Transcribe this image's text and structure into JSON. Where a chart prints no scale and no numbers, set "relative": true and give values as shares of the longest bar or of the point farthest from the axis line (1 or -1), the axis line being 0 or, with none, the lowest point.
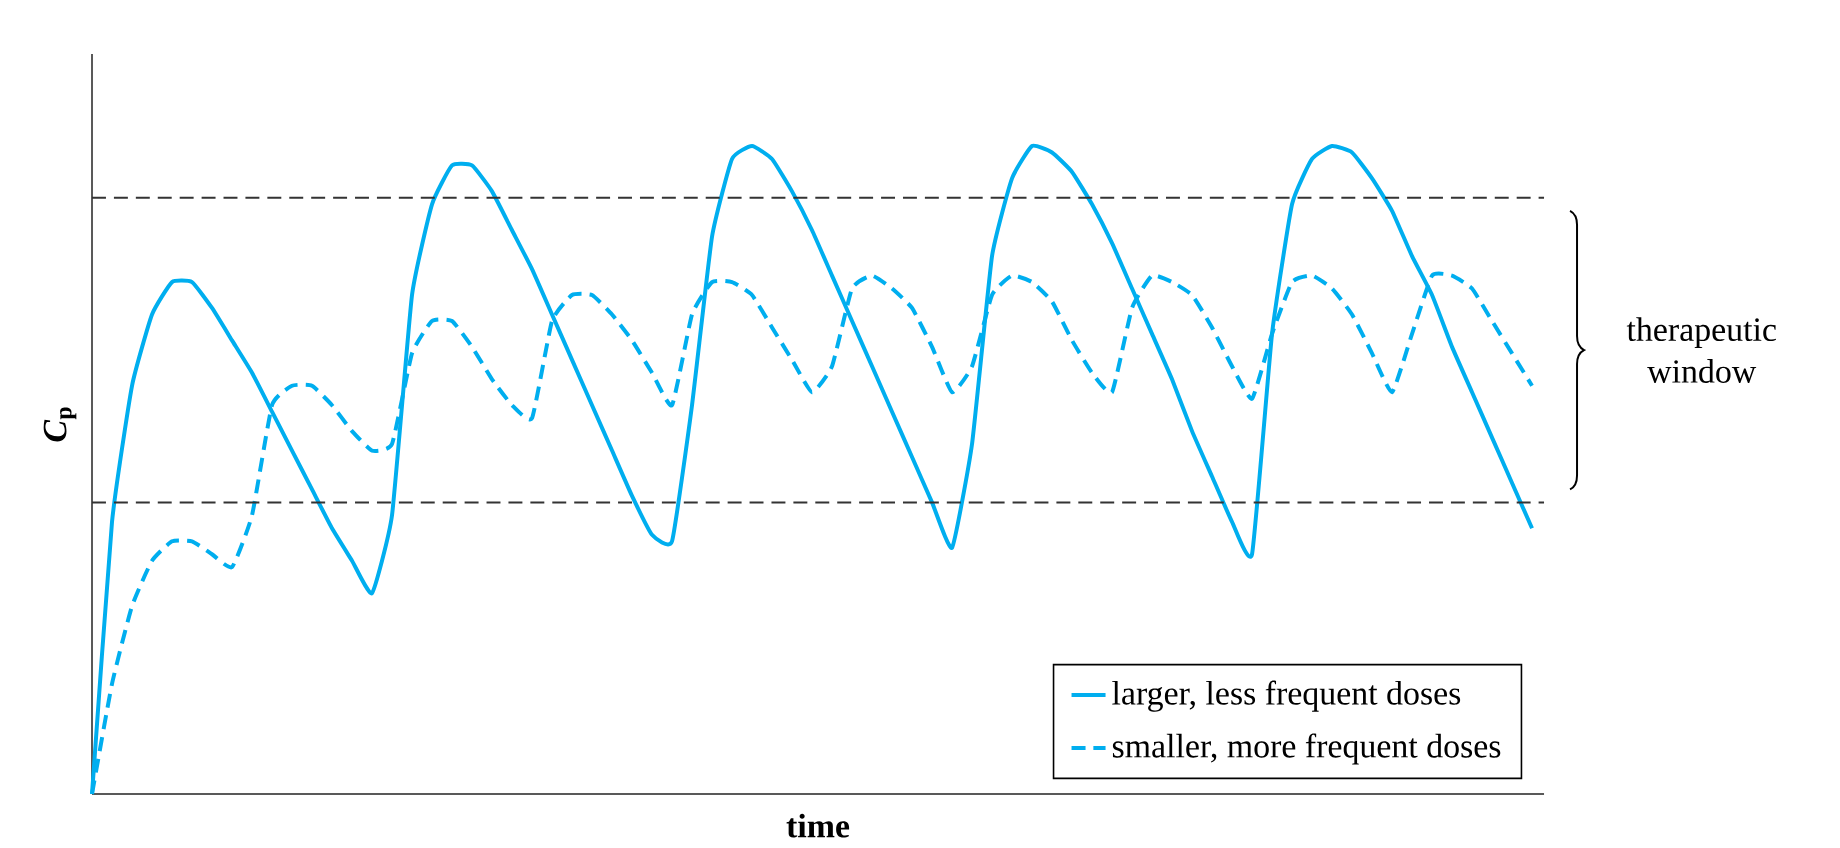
{
  "chart_data": {
    "type": "line",
    "relative": true,
    "xlabel": "time",
    "ylabel": "*C*$_{p}$",
    "categories": [
      null,
      null,
      null,
      null,
      null,
      null,
      null,
      null,
      null,
      null,
      null,
      null,
      null,
      null,
      null,
      null,
      null,
      null,
      null,
      null,
      null,
      null,
      null,
      null,
      null,
      null,
      null,
      null,
      null,
      null,
      null,
      null,
      null,
      null,
      null,
      null,
      null,
      null,
      null,
      null,
      null,
      null,
      null,
      null,
      null,
      null,
      null,
      null,
      null,
      null,
      null,
      null,
      null,
      null,
      null,
      null,
      null,
      null,
      null,
      null,
      null,
      null,
      null,
      null,
      null,
      null,
      null,
      null,
      null,
      null,
      null,
      null,
      null
    ],
    "series": [
      {
        "name": "larger, less frequent doses",
        "color": "#00aeef",
        "line_style": "solid",
        "values": [
          0,
          0.42,
          0.63,
          0.74,
          0.79,
          0.79,
          0.75,
          0.7,
          0.65,
          0.59,
          0.53,
          0.47,
          0.41,
          0.36,
          0.31,
          0.43,
          0.77,
          0.91,
          0.97,
          0.97,
          0.93,
          0.87,
          0.81,
          0.74,
          0.67,
          0.6,
          0.53,
          0.46,
          0.4,
          0.39,
          0.6,
          0.86,
          0.98,
          1,
          0.98,
          0.93,
          0.87,
          0.8,
          0.73,
          0.66,
          0.59,
          0.52,
          0.45,
          0.38,
          0.54,
          0.83,
          0.95,
          1,
          0.99,
          0.96,
          0.91,
          0.85,
          0.78,
          0.71,
          0.64,
          0.56,
          0.49,
          0.42,
          0.37,
          0.71,
          0.91,
          0.98,
          1,
          0.99,
          0.95,
          0.9,
          0.83,
          0.77,
          0.69,
          0.62,
          0.55,
          0.48,
          0.41
        ]
      },
      {
        "name": "smaller, more frequent doses",
        "color": "#00aeef",
        "line_style": "dashed",
        "values": [
          0,
          0.17,
          0.29,
          0.36,
          0.39,
          0.39,
          0.37,
          0.35,
          0.43,
          0.6,
          0.63,
          0.63,
          0.6,
          0.56,
          0.53,
          0.54,
          0.68,
          0.73,
          0.73,
          0.69,
          0.64,
          0.6,
          0.58,
          0.73,
          0.77,
          0.77,
          0.74,
          0.7,
          0.65,
          0.6,
          0.74,
          0.79,
          0.79,
          0.77,
          0.72,
          0.67,
          0.62,
          0.66,
          0.78,
          0.8,
          0.78,
          0.75,
          0.69,
          0.62,
          0.66,
          0.77,
          0.8,
          0.79,
          0.76,
          0.7,
          0.65,
          0.62,
          0.75,
          0.8,
          0.79,
          0.77,
          0.72,
          0.66,
          0.61,
          0.71,
          0.79,
          0.8,
          0.78,
          0.74,
          0.68,
          0.62,
          0.71,
          0.8,
          0.8,
          0.78,
          0.73,
          0.68,
          0.63
        ]
      }
    ],
    "ref_lines": [
      {
        "axis": "y",
        "value": 0.92,
        "color": "#333333",
        "line_style": "dashed"
      },
      {
        "axis": "y",
        "value": 0.45,
        "color": "#333333",
        "line_style": "dashed"
      }
    ],
    "annotations": [
      "therapeutic window"
    ],
    "legend": "bottom right",
    "tick_labels": false
  }
}
